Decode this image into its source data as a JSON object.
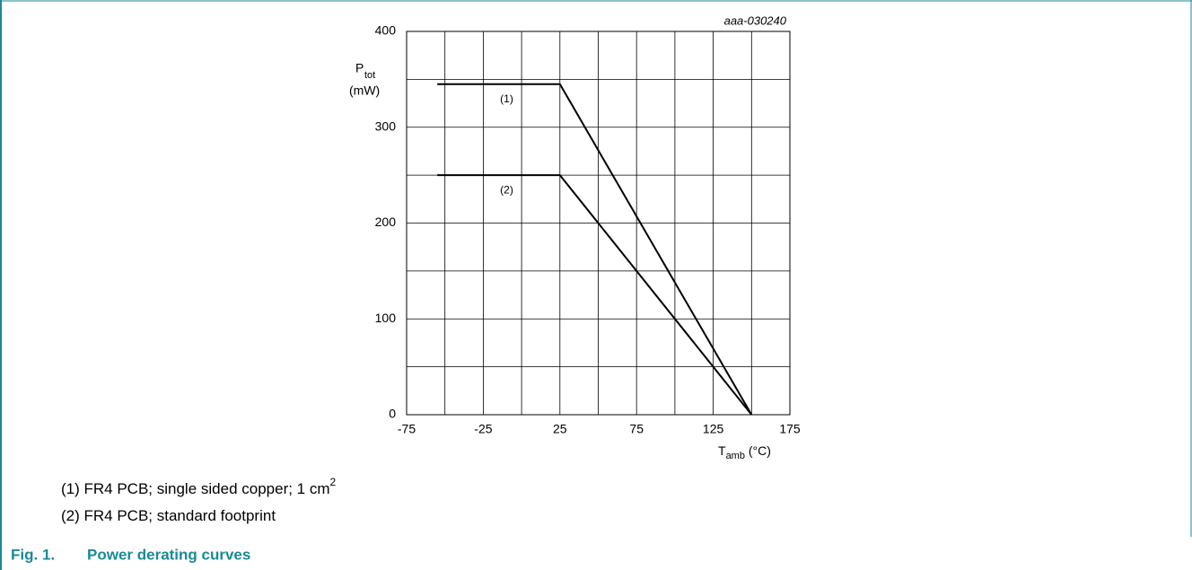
{
  "chart_data": {
    "type": "line",
    "annotation": "aaa-030240",
    "y_label": "P",
    "y_label_sub": "tot",
    "y_label_unit": "(mW)",
    "x_label": "T",
    "x_label_sub": "amb",
    "x_label_unit": " (°C)",
    "xlim": [
      -75,
      175
    ],
    "xticks": [
      -75,
      -25,
      25,
      75,
      125,
      175
    ],
    "x_minor_ticks": [
      -50,
      0,
      50,
      100,
      150
    ],
    "ylim": [
      0,
      400
    ],
    "yticks": [
      0,
      100,
      200,
      300,
      400
    ],
    "y_minor_ticks": [
      50,
      150,
      250,
      350
    ],
    "grid": true,
    "series": [
      {
        "name": "(1)",
        "color": "#000000",
        "x": [
          -55,
          25,
          150
        ],
        "values": [
          345,
          345,
          0
        ]
      },
      {
        "name": "(2)",
        "color": "#000000",
        "x": [
          -55,
          25,
          150
        ],
        "values": [
          250,
          250,
          0
        ]
      }
    ],
    "notes": [
      {
        "text": "(1) FR4 PCB; single sided copper; 1 cm",
        "sup": "2"
      },
      {
        "text": "(2) FR4 PCB; standard footprint"
      }
    ],
    "figure_number": "Fig. 1.",
    "figure_title": "Power derating curves"
  }
}
